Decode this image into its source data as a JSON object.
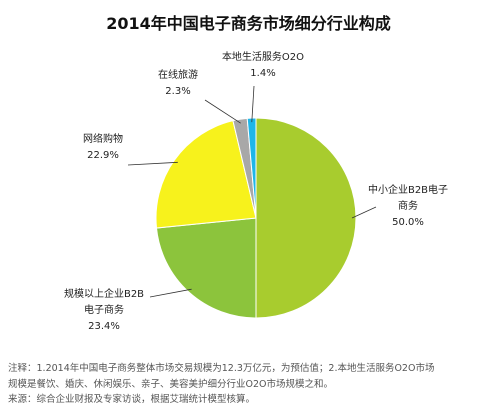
{
  "chart_data": {
    "type": "pie",
    "title": "2014年中国电子商务市场细分行业构成",
    "slices": [
      {
        "name": "中小企业B2B电子商务",
        "value": 50.0,
        "value_label": "50.0%",
        "color": "#a8cc2e"
      },
      {
        "name": "规模以上企业B2B电子商务",
        "value": 23.4,
        "value_label": "23.4%",
        "color": "#8cc43c"
      },
      {
        "name": "网络购物",
        "value": 22.9,
        "value_label": "22.9%",
        "color": "#f7f21c"
      },
      {
        "name": "在线旅游",
        "value": 2.3,
        "value_label": "2.3%",
        "color": "#a8a8a8"
      },
      {
        "name": "本地生活服务O2O",
        "value": 1.4,
        "value_label": "1.4%",
        "color": "#1fb6e8"
      }
    ]
  },
  "labels": {
    "sme_line1": "中小企业B2B电子",
    "sme_line2": "商务",
    "large_line1": "规模以上企业B2B",
    "large_line2": "电子商务",
    "shopping": "网络购物",
    "travel": "在线旅游",
    "o2o": "本地生活服务O2O"
  },
  "notes": {
    "line1": "注释：1.2014年中国电子商务整体市场交易规模为12.3万亿元，为预估值；2.本地生活服务O2O市场",
    "line2": "规模是餐饮、婚庆、休闲娱乐、亲子、美容美护细分行业O2O市场规模之和。",
    "line3": "来源：综合企业财报及专家访谈，根据艾瑞统计模型核算。"
  }
}
